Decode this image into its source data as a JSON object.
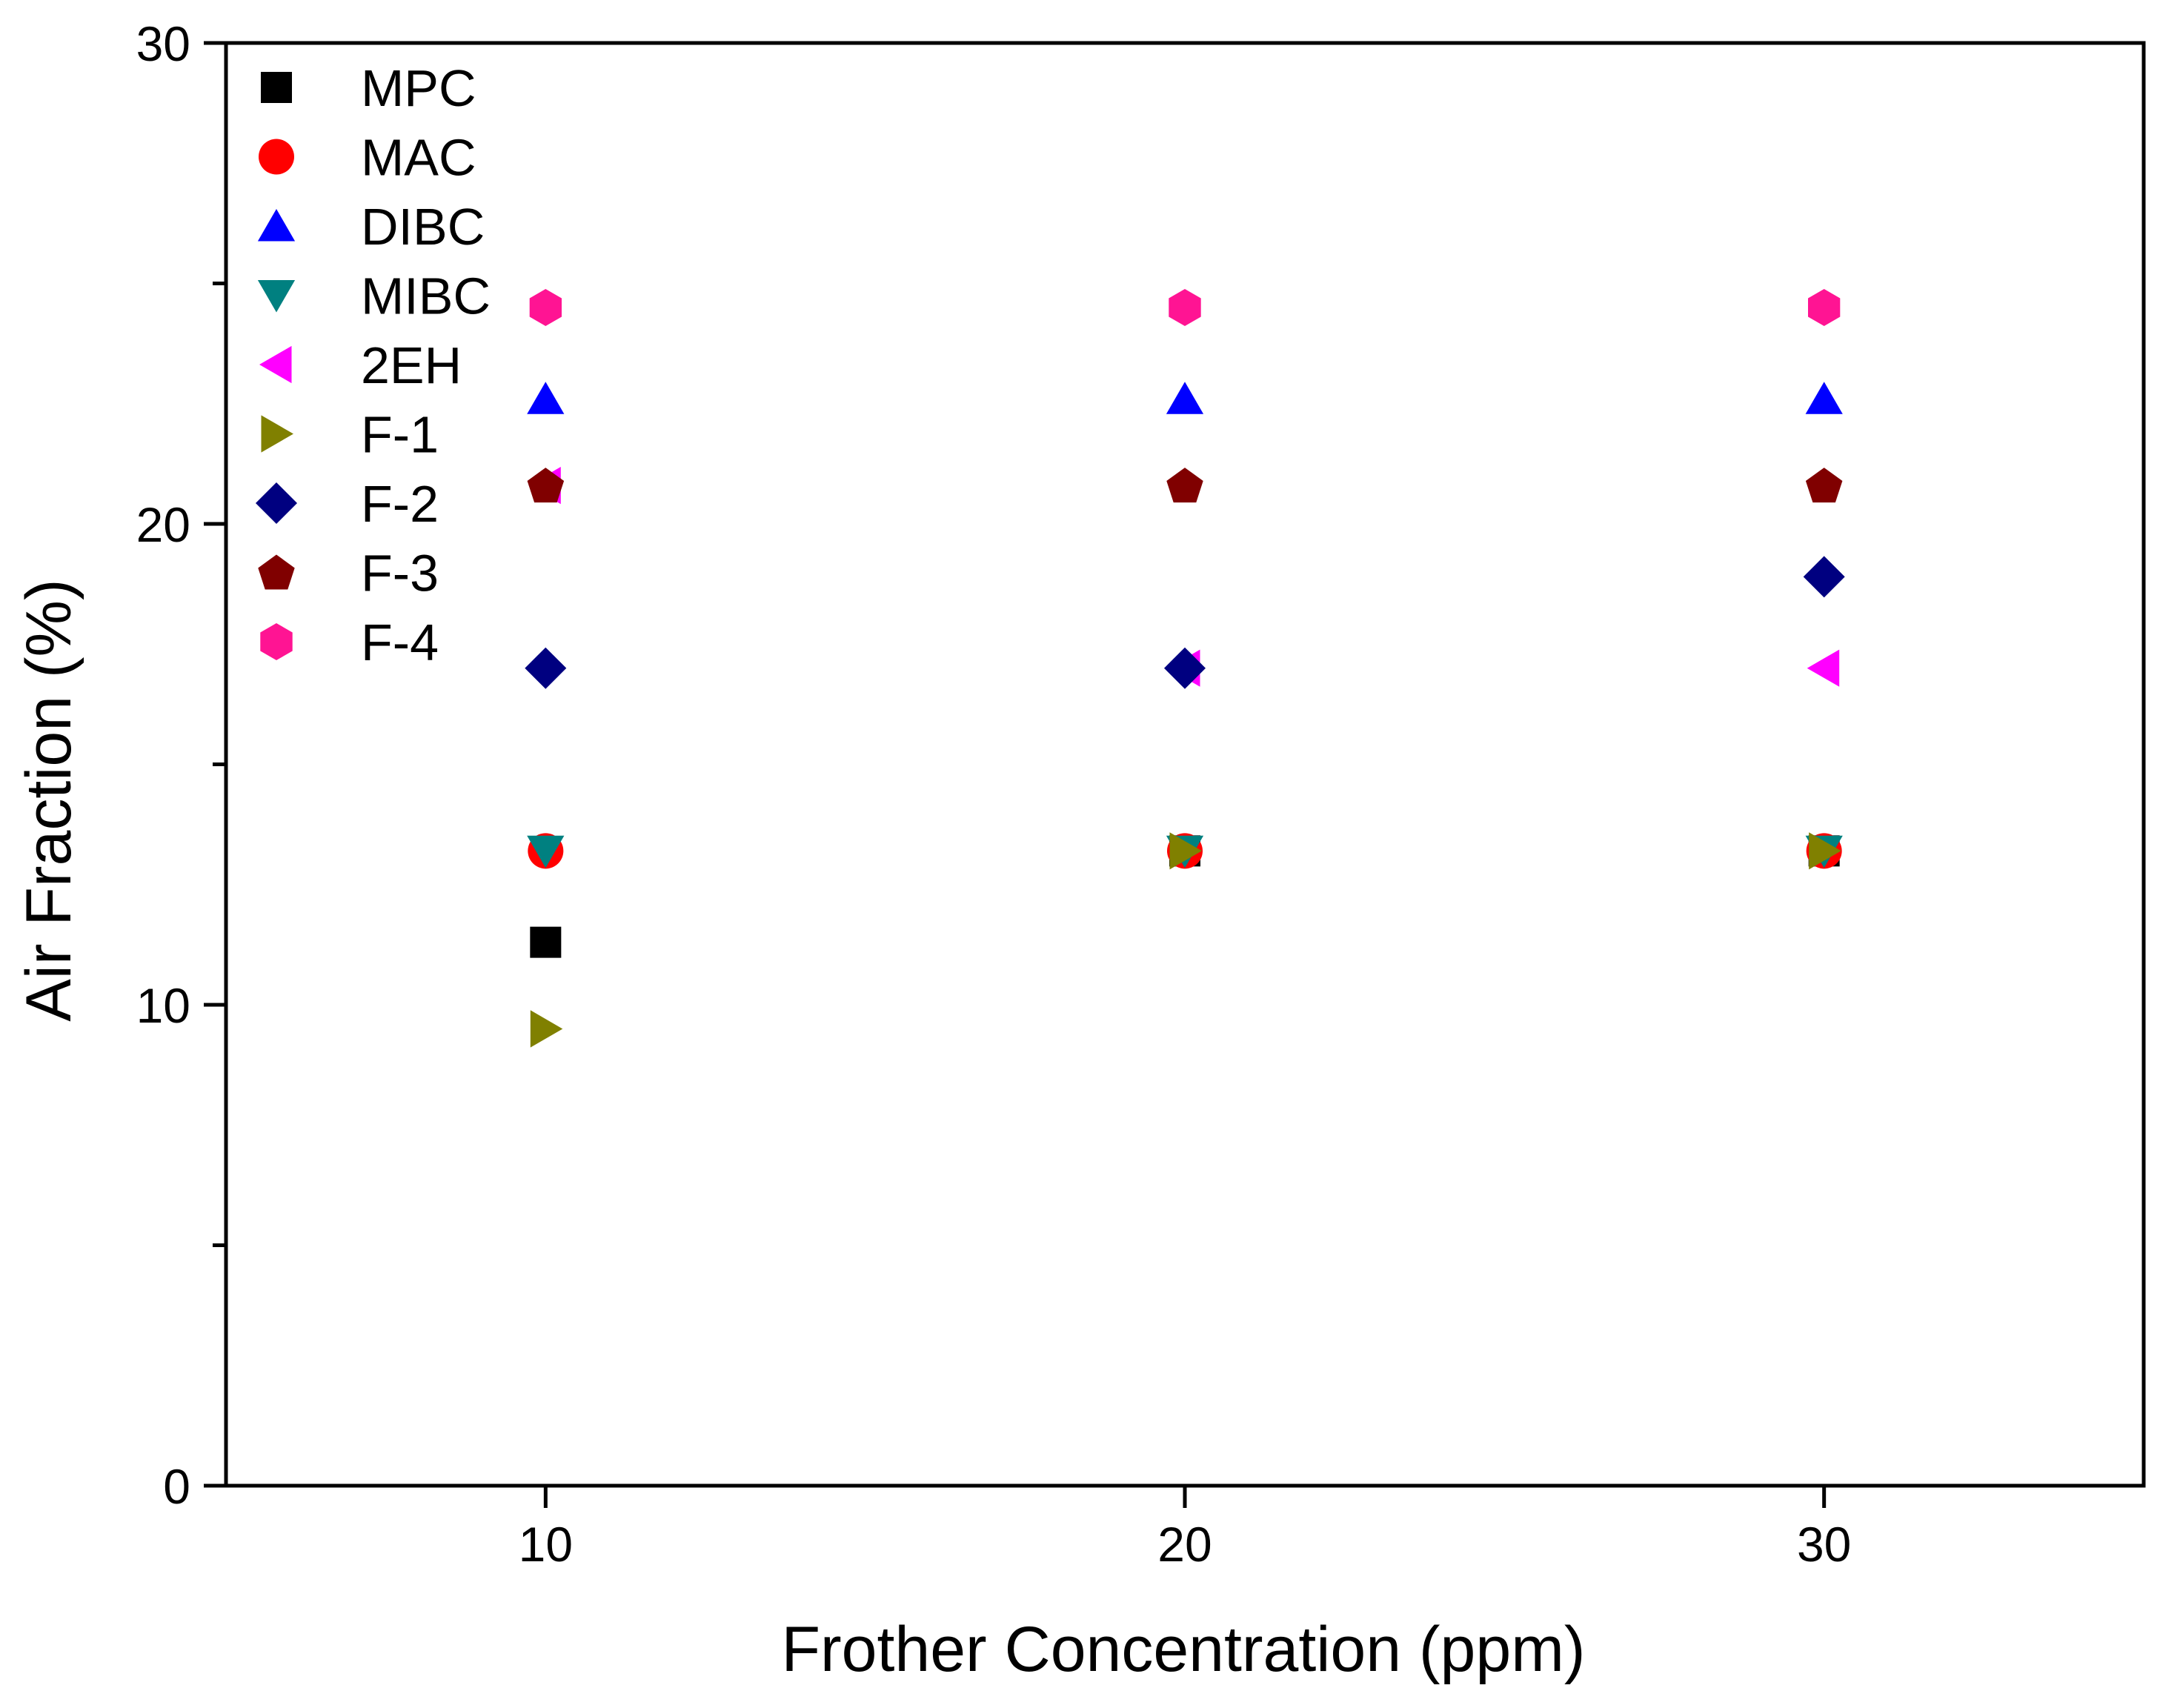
{
  "chart_data": {
    "type": "scatter",
    "title": "",
    "xlabel": "Frother Concentration (ppm)",
    "ylabel": "Air Fraction (%)",
    "xlim": [
      5,
      35
    ],
    "ylim": [
      0,
      30
    ],
    "xticks": [
      10,
      20,
      30
    ],
    "yticks": [
      0,
      10,
      20,
      30
    ],
    "y_minor_ticks": [
      5,
      15,
      25
    ],
    "legend_position": "top-left",
    "grid": false,
    "series": [
      {
        "name": "MPC",
        "marker": "square",
        "color": "#000000",
        "x": [
          10,
          20,
          30
        ],
        "y": [
          11.3,
          13.2,
          13.2
        ]
      },
      {
        "name": "MAC",
        "marker": "circle",
        "color": "#ff0000",
        "x": [
          10,
          20,
          30
        ],
        "y": [
          13.2,
          13.2,
          13.2
        ]
      },
      {
        "name": "DIBC",
        "marker": "triangle-up",
        "color": "#0000ff",
        "x": [
          10,
          20,
          30
        ],
        "y": [
          22.6,
          22.6,
          22.6
        ]
      },
      {
        "name": "MIBC",
        "marker": "triangle-down",
        "color": "#008080",
        "x": [
          10,
          20,
          30
        ],
        "y": [
          13.2,
          13.2,
          13.2
        ]
      },
      {
        "name": "2EH",
        "marker": "triangle-left",
        "color": "#ff00ff",
        "x": [
          10,
          20,
          30
        ],
        "y": [
          20.8,
          17.0,
          17.0
        ]
      },
      {
        "name": "F-1",
        "marker": "triangle-right",
        "color": "#808000",
        "x": [
          10,
          20,
          30
        ],
        "y": [
          9.5,
          13.2,
          13.2
        ]
      },
      {
        "name": "F-2",
        "marker": "diamond",
        "color": "#000080",
        "x": [
          10,
          20,
          30
        ],
        "y": [
          17.0,
          17.0,
          18.9
        ]
      },
      {
        "name": "F-3",
        "marker": "pentagon",
        "color": "#800000",
        "x": [
          10,
          20,
          30
        ],
        "y": [
          20.8,
          20.8,
          20.8
        ]
      },
      {
        "name": "F-4",
        "marker": "hexagon",
        "color": "#ff1493",
        "x": [
          10,
          20,
          30
        ],
        "y": [
          24.5,
          24.5,
          24.5
        ]
      }
    ]
  }
}
